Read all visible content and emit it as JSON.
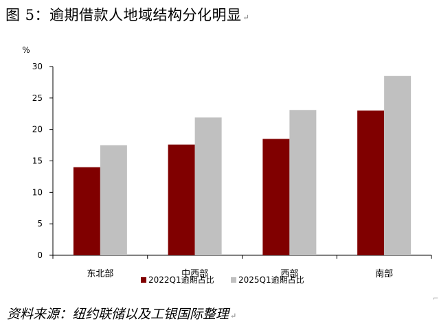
{
  "header": {
    "title": "图 5：逾期借款人地域结构分化明显",
    "paragraph_mark": "↵"
  },
  "footer": {
    "source": "资料来源：纽约联储以及工银国际整理",
    "paragraph_mark": "↵"
  },
  "chart_data": {
    "type": "bar",
    "title": "",
    "xlabel": "",
    "ylabel": "%",
    "ylim": [
      0,
      30
    ],
    "yticks": [
      "0",
      "5",
      "10",
      "15",
      "20",
      "25",
      "30"
    ],
    "grid": false,
    "legend_position": "bottom",
    "categories": [
      "东北部",
      "中西部",
      "西部",
      "南部"
    ],
    "series": [
      {
        "name": "2022Q1逾期占比",
        "color": "#800000",
        "values": [
          14.0,
          17.6,
          18.5,
          23.0
        ]
      },
      {
        "name": "2025Q1逾期占比",
        "color": "#c0c0c0",
        "values": [
          17.5,
          21.9,
          23.1,
          28.5
        ]
      }
    ]
  }
}
